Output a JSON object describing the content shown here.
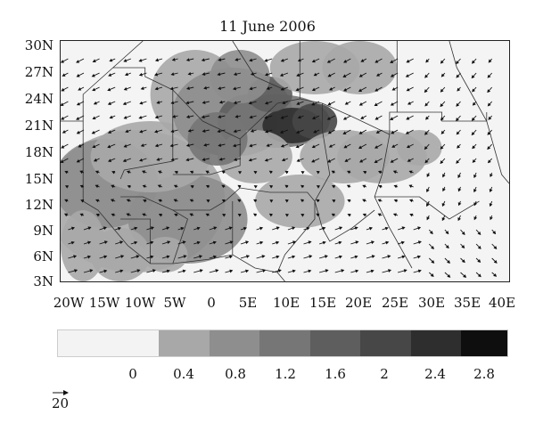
{
  "title": "11 June 2006",
  "map": {
    "lat_labels": [
      "30N",
      "27N",
      "24N",
      "21N",
      "18N",
      "15N",
      "12N",
      "9N",
      "6N",
      "3N"
    ],
    "lon_labels": [
      "20W",
      "15W",
      "10W",
      "5W",
      "0",
      "5E",
      "10E",
      "15E",
      "20E",
      "25E",
      "30E",
      "35E",
      "40E"
    ],
    "lat_range": [
      3,
      30
    ],
    "lon_range": [
      -20,
      40
    ]
  },
  "colorbar": {
    "labels": [
      "0",
      "0.4",
      "0.8",
      "1.2",
      "1.6",
      "2",
      "2.4",
      "2.8"
    ],
    "colors": [
      "#f3f3f3",
      "#a8a8a8",
      "#8e8e8e",
      "#767676",
      "#5e5e5e",
      "#474747",
      "#2e2e2e",
      "#0e0e0e"
    ]
  },
  "reference_vector": {
    "label": "20"
  }
}
